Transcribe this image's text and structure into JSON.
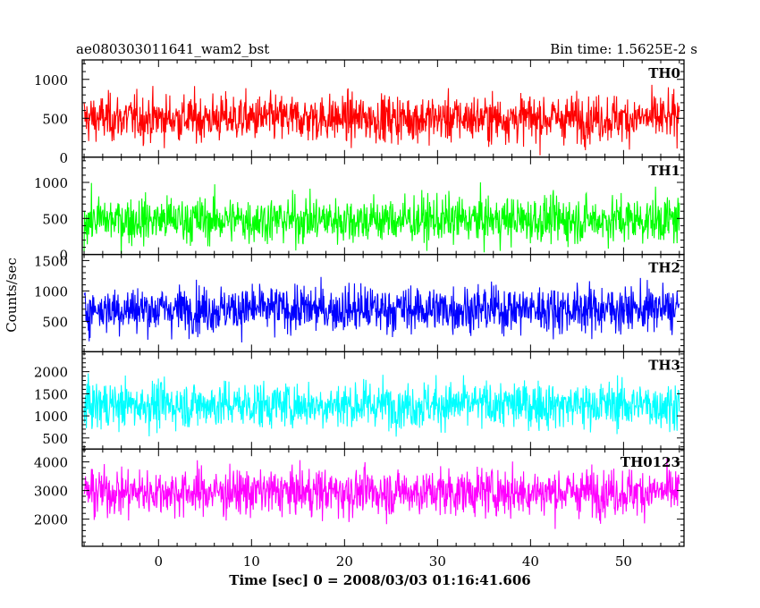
{
  "header": {
    "left_title": "ae080303011641_wam2_bst",
    "right_title": "Bin time: 1.5625E-2 s"
  },
  "chart_data": {
    "type": "line",
    "x_label": "Time [sec] 0 = 2008/03/03 01:16:41.606",
    "y_label": "Counts/sec",
    "x_range": [
      -8.2,
      56.5
    ],
    "x_data_range": [
      -8.0,
      56.0
    ],
    "bin_time_s": 0.015625,
    "x_ticks": [
      "0",
      "10",
      "20",
      "30",
      "40",
      "50"
    ],
    "x_tick_values": [
      0,
      10,
      20,
      30,
      40,
      50
    ],
    "grid": false,
    "panels": [
      {
        "name": "TH0",
        "color": "#ff0000",
        "ylim": [
          0,
          1250
        ],
        "yticks": [
          0,
          500,
          1000
        ],
        "ytick_labels": [
          "0",
          "500",
          "1000"
        ],
        "approx_mean": 500,
        "approx_range": [
          0,
          1250
        ]
      },
      {
        "name": "TH1",
        "color": "#00ff00",
        "ylim": [
          0,
          1350
        ],
        "yticks": [
          0,
          500,
          1000
        ],
        "ytick_labels": [
          "0",
          "500",
          "1000"
        ],
        "approx_mean": 480,
        "approx_range": [
          0,
          1350
        ]
      },
      {
        "name": "TH2",
        "color": "#0000ff",
        "ylim": [
          0,
          1600
        ],
        "yticks": [
          500,
          1000,
          1500
        ],
        "ytick_labels": [
          "500",
          "1000",
          "1500"
        ],
        "approx_mean": 700,
        "approx_range": [
          0,
          1600
        ]
      },
      {
        "name": "TH3",
        "color": "#00ffff",
        "ylim": [
          250,
          2450
        ],
        "yticks": [
          500,
          1000,
          1500,
          2000
        ],
        "ytick_labels": [
          "500",
          "1000",
          "1500",
          "2000"
        ],
        "approx_mean": 1250,
        "approx_range": [
          250,
          2450
        ]
      },
      {
        "name": "TH0123",
        "color": "#ff00ff",
        "ylim": [
          1050,
          4450
        ],
        "yticks": [
          2000,
          3000,
          4000
        ],
        "ytick_labels": [
          "2000",
          "3000",
          "4000"
        ],
        "approx_mean": 2950,
        "approx_range": [
          1050,
          4450
        ]
      }
    ]
  }
}
